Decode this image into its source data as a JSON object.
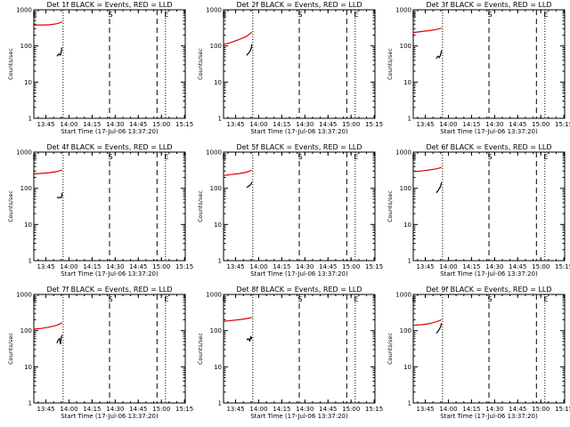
{
  "figure": {
    "background": "#ffffff",
    "axis_color": "#000000",
    "events_color": "#000000",
    "lld_color": "#e00000"
  },
  "chart_data": [
    {
      "type": "line",
      "title": "Det 1f BLACK = Events, RED = LLD",
      "xlabel": "Start Time (17-Jul-06 13:37:20)",
      "ylabel": "Counts/sec",
      "yscale": "log",
      "ylim": [
        1,
        1000
      ],
      "xlim_sec": [
        0,
        5900
      ],
      "y_ticks": [
        "1",
        "10",
        "100",
        "1000"
      ],
      "x_ticks": [
        {
          "t": 470,
          "label": "13:45"
        },
        {
          "t": 1370,
          "label": "14:00"
        },
        {
          "t": 2270,
          "label": "14:15"
        },
        {
          "t": 3170,
          "label": "14:30"
        },
        {
          "t": 4070,
          "label": "14:45"
        },
        {
          "t": 4970,
          "label": "15:00"
        },
        {
          "t": 5870,
          "label": "15:15"
        }
      ],
      "markers": [
        {
          "t": 0,
          "style": "dotted",
          "label": "E"
        },
        {
          "t": 1140,
          "style": "dotted",
          "label": ""
        },
        {
          "t": 2950,
          "style": "dashed",
          "label": "S"
        },
        {
          "t": 4800,
          "style": "dashed",
          "label": ""
        },
        {
          "t": 5130,
          "style": "dotted",
          "label": "E"
        }
      ],
      "series": [
        {
          "name": "LLD",
          "color": "#e00000",
          "x": [
            0,
            300,
            600,
            900,
            1100
          ],
          "y": [
            380,
            380,
            385,
            410,
            460
          ]
        },
        {
          "name": "Events",
          "color": "#000000",
          "x": [
            900,
            980,
            1040,
            1060,
            1080,
            1090
          ],
          "y": [
            52,
            60,
            56,
            65,
            78,
            90
          ]
        }
      ]
    },
    {
      "type": "line",
      "title": "Det 2f BLACK = Events, RED = LLD",
      "xlabel": "Start Time (17-Jul-06 13:37:20)",
      "ylabel": "Counts/sec",
      "yscale": "log",
      "ylim": [
        1,
        1000
      ],
      "xlim_sec": [
        0,
        5900
      ],
      "y_ticks": [
        "1",
        "10",
        "100",
        "1000"
      ],
      "x_ticks": [
        {
          "t": 470,
          "label": "13:45"
        },
        {
          "t": 1370,
          "label": "14:00"
        },
        {
          "t": 2270,
          "label": "14:15"
        },
        {
          "t": 3170,
          "label": "14:30"
        },
        {
          "t": 4070,
          "label": "14:45"
        },
        {
          "t": 4970,
          "label": "15:00"
        },
        {
          "t": 5870,
          "label": "15:15"
        }
      ],
      "markers": [
        {
          "t": 0,
          "style": "dotted",
          "label": "E"
        },
        {
          "t": 1140,
          "style": "dotted",
          "label": ""
        },
        {
          "t": 2950,
          "style": "dashed",
          "label": "S"
        },
        {
          "t": 4800,
          "style": "dashed",
          "label": ""
        },
        {
          "t": 5130,
          "style": "dotted",
          "label": "E"
        }
      ],
      "series": [
        {
          "name": "LLD",
          "color": "#e00000",
          "x": [
            0,
            300,
            600,
            900,
            1100
          ],
          "y": [
            110,
            125,
            150,
            185,
            240
          ]
        },
        {
          "name": "Events",
          "color": "#000000",
          "x": [
            900,
            960,
            1020,
            1060,
            1080,
            1100
          ],
          "y": [
            55,
            62,
            70,
            78,
            85,
            110
          ]
        }
      ]
    },
    {
      "type": "line",
      "title": "Det 3f BLACK = Events, RED = LLD",
      "xlabel": "Start Time (17-Jul-06 13:37:20)",
      "ylabel": "Counts/sec",
      "yscale": "log",
      "ylim": [
        1,
        1000
      ],
      "xlim_sec": [
        0,
        5900
      ],
      "y_ticks": [
        "1",
        "10",
        "100",
        "1000"
      ],
      "x_ticks": [
        {
          "t": 470,
          "label": "13:45"
        },
        {
          "t": 1370,
          "label": "14:00"
        },
        {
          "t": 2270,
          "label": "14:15"
        },
        {
          "t": 3170,
          "label": "14:30"
        },
        {
          "t": 4070,
          "label": "14:45"
        },
        {
          "t": 4970,
          "label": "15:00"
        },
        {
          "t": 5870,
          "label": "15:15"
        }
      ],
      "markers": [
        {
          "t": 0,
          "style": "dotted",
          "label": "E"
        },
        {
          "t": 1140,
          "style": "dotted",
          "label": ""
        },
        {
          "t": 2950,
          "style": "dashed",
          "label": "S"
        },
        {
          "t": 4800,
          "style": "dashed",
          "label": ""
        },
        {
          "t": 5130,
          "style": "dotted",
          "label": "E"
        }
      ],
      "series": [
        {
          "name": "LLD",
          "color": "#e00000",
          "x": [
            0,
            300,
            600,
            900,
            1100
          ],
          "y": [
            235,
            250,
            265,
            285,
            310
          ]
        },
        {
          "name": "Events",
          "color": "#000000",
          "x": [
            900,
            960,
            1020,
            1060,
            1080,
            1100
          ],
          "y": [
            45,
            52,
            48,
            55,
            62,
            75
          ]
        }
      ]
    },
    {
      "type": "line",
      "title": "Det 4f BLACK = Events, RED = LLD",
      "xlabel": "Start Time (17-Jul-06 13:37:20)",
      "ylabel": "Counts/sec",
      "yscale": "log",
      "ylim": [
        1,
        1000
      ],
      "xlim_sec": [
        0,
        5900
      ],
      "y_ticks": [
        "1",
        "10",
        "100",
        "1000"
      ],
      "x_ticks": [
        {
          "t": 470,
          "label": "13:45"
        },
        {
          "t": 1370,
          "label": "14:00"
        },
        {
          "t": 2270,
          "label": "14:15"
        },
        {
          "t": 3170,
          "label": "14:30"
        },
        {
          "t": 4070,
          "label": "14:45"
        },
        {
          "t": 4970,
          "label": "15:00"
        },
        {
          "t": 5870,
          "label": "15:15"
        }
      ],
      "markers": [
        {
          "t": 0,
          "style": "dotted",
          "label": "E"
        },
        {
          "t": 1140,
          "style": "dotted",
          "label": ""
        },
        {
          "t": 2950,
          "style": "dashed",
          "label": "S"
        },
        {
          "t": 4800,
          "style": "dashed",
          "label": ""
        },
        {
          "t": 5130,
          "style": "dotted",
          "label": "E"
        }
      ],
      "series": [
        {
          "name": "LLD",
          "color": "#e00000",
          "x": [
            0,
            300,
            600,
            900,
            1100
          ],
          "y": [
            250,
            258,
            270,
            290,
            320
          ]
        },
        {
          "name": "Events",
          "color": "#000000",
          "x": [
            900,
            980,
            1040,
            1070,
            1090,
            1100
          ],
          "y": [
            55,
            56,
            55,
            56,
            60,
            75
          ]
        }
      ]
    },
    {
      "type": "line",
      "title": "Det 5f BLACK = Events, RED = LLD",
      "xlabel": "Start Time (17-Jul-06 13:37:20)",
      "ylabel": "Counts/sec",
      "yscale": "log",
      "ylim": [
        1,
        1000
      ],
      "xlim_sec": [
        0,
        5900
      ],
      "y_ticks": [
        "1",
        "10",
        "100",
        "1000"
      ],
      "x_ticks": [
        {
          "t": 470,
          "label": "13:45"
        },
        {
          "t": 1370,
          "label": "14:00"
        },
        {
          "t": 2270,
          "label": "14:15"
        },
        {
          "t": 3170,
          "label": "14:30"
        },
        {
          "t": 4070,
          "label": "14:45"
        },
        {
          "t": 4970,
          "label": "15:00"
        },
        {
          "t": 5870,
          "label": "15:15"
        }
      ],
      "markers": [
        {
          "t": 0,
          "style": "dotted",
          "label": "E"
        },
        {
          "t": 1140,
          "style": "dotted",
          "label": ""
        },
        {
          "t": 2950,
          "style": "dashed",
          "label": "S"
        },
        {
          "t": 4800,
          "style": "dashed",
          "label": ""
        },
        {
          "t": 5130,
          "style": "dotted",
          "label": "E"
        }
      ],
      "series": [
        {
          "name": "LLD",
          "color": "#e00000",
          "x": [
            0,
            300,
            600,
            900,
            1100
          ],
          "y": [
            225,
            240,
            255,
            280,
            315
          ]
        },
        {
          "name": "Events",
          "color": "#000000",
          "x": [
            900,
            960,
            1020,
            1060,
            1080,
            1100
          ],
          "y": [
            105,
            112,
            120,
            128,
            135,
            150
          ]
        }
      ]
    },
    {
      "type": "line",
      "title": "Det 6f BLACK = Events, RED = LLD",
      "xlabel": "Start Time (17-Jul-06 13:37:20)",
      "ylabel": "Counts/sec",
      "yscale": "log",
      "ylim": [
        1,
        1000
      ],
      "xlim_sec": [
        0,
        5900
      ],
      "y_ticks": [
        "1",
        "10",
        "100",
        "1000"
      ],
      "x_ticks": [
        {
          "t": 470,
          "label": "13:45"
        },
        {
          "t": 1370,
          "label": "14:00"
        },
        {
          "t": 2270,
          "label": "14:15"
        },
        {
          "t": 3170,
          "label": "14:30"
        },
        {
          "t": 4070,
          "label": "14:45"
        },
        {
          "t": 4970,
          "label": "15:00"
        },
        {
          "t": 5870,
          "label": "15:15"
        }
      ],
      "markers": [
        {
          "t": 0,
          "style": "dotted",
          "label": "E"
        },
        {
          "t": 1140,
          "style": "dotted",
          "label": ""
        },
        {
          "t": 2950,
          "style": "dashed",
          "label": "S"
        },
        {
          "t": 4800,
          "style": "dashed",
          "label": ""
        },
        {
          "t": 5130,
          "style": "dotted",
          "label": "E"
        }
      ],
      "series": [
        {
          "name": "LLD",
          "color": "#e00000",
          "x": [
            0,
            300,
            600,
            900,
            1100
          ],
          "y": [
            290,
            300,
            320,
            345,
            375
          ]
        },
        {
          "name": "Events",
          "color": "#000000",
          "x": [
            900,
            960,
            1020,
            1060,
            1080,
            1100
          ],
          "y": [
            75,
            85,
            100,
            110,
            125,
            145
          ]
        }
      ]
    },
    {
      "type": "line",
      "title": "Det 7f BLACK = Events, RED = LLD",
      "xlabel": "Start Time (17-Jul-06 13:37:20)",
      "ylabel": "Counts/sec",
      "yscale": "log",
      "ylim": [
        1,
        1000
      ],
      "xlim_sec": [
        0,
        5900
      ],
      "y_ticks": [
        "1",
        "10",
        "100",
        "1000"
      ],
      "x_ticks": [
        {
          "t": 470,
          "label": "13:45"
        },
        {
          "t": 1370,
          "label": "14:00"
        },
        {
          "t": 2270,
          "label": "14:15"
        },
        {
          "t": 3170,
          "label": "14:30"
        },
        {
          "t": 4070,
          "label": "14:45"
        },
        {
          "t": 4970,
          "label": "15:00"
        },
        {
          "t": 5870,
          "label": "15:15"
        }
      ],
      "markers": [
        {
          "t": 0,
          "style": "dotted",
          "label": "E"
        },
        {
          "t": 1140,
          "style": "dotted",
          "label": ""
        },
        {
          "t": 2950,
          "style": "dashed",
          "label": "S"
        },
        {
          "t": 4800,
          "style": "dashed",
          "label": ""
        },
        {
          "t": 5130,
          "style": "dotted",
          "label": "E"
        }
      ],
      "series": [
        {
          "name": "LLD",
          "color": "#e00000",
          "x": [
            0,
            300,
            600,
            900,
            1100
          ],
          "y": [
            110,
            115,
            125,
            140,
            165
          ]
        },
        {
          "name": "Events",
          "color": "#000000",
          "x": [
            900,
            950,
            1000,
            1040,
            1070,
            1100
          ],
          "y": [
            45,
            55,
            60,
            42,
            65,
            75
          ]
        }
      ]
    },
    {
      "type": "line",
      "title": "Det 8f BLACK = Events, RED = LLD",
      "xlabel": "Start Time (17-Jul-06 13:37:20)",
      "ylabel": "Counts/sec",
      "yscale": "log",
      "ylim": [
        1,
        1000
      ],
      "xlim_sec": [
        0,
        5900
      ],
      "y_ticks": [
        "1",
        "10",
        "100",
        "1000"
      ],
      "x_ticks": [
        {
          "t": 470,
          "label": "13:45"
        },
        {
          "t": 1370,
          "label": "14:00"
        },
        {
          "t": 2270,
          "label": "14:15"
        },
        {
          "t": 3170,
          "label": "14:30"
        },
        {
          "t": 4070,
          "label": "14:45"
        },
        {
          "t": 4970,
          "label": "15:00"
        },
        {
          "t": 5870,
          "label": "15:15"
        }
      ],
      "markers": [
        {
          "t": 0,
          "style": "dotted",
          "label": "E"
        },
        {
          "t": 1140,
          "style": "dotted",
          "label": ""
        },
        {
          "t": 2950,
          "style": "dashed",
          "label": "S"
        },
        {
          "t": 4800,
          "style": "dashed",
          "label": ""
        },
        {
          "t": 5130,
          "style": "dotted",
          "label": "E"
        }
      ],
      "series": [
        {
          "name": "LLD",
          "color": "#e00000",
          "x": [
            0,
            300,
            600,
            900,
            1100
          ],
          "y": [
            180,
            190,
            200,
            215,
            230
          ]
        },
        {
          "name": "Events",
          "color": "#000000",
          "x": [
            900,
            960,
            1020,
            1060,
            1080,
            1100
          ],
          "y": [
            55,
            60,
            52,
            65,
            58,
            68
          ]
        }
      ]
    },
    {
      "type": "line",
      "title": "Det 9f BLACK = Events, RED = LLD",
      "xlabel": "Start Time (17-Jul-06 13:37:20)",
      "ylabel": "Counts/sec",
      "yscale": "log",
      "ylim": [
        1,
        1000
      ],
      "xlim_sec": [
        0,
        5900
      ],
      "y_ticks": [
        "1",
        "10",
        "100",
        "1000"
      ],
      "x_ticks": [
        {
          "t": 470,
          "label": "13:45"
        },
        {
          "t": 1370,
          "label": "14:00"
        },
        {
          "t": 2270,
          "label": "14:15"
        },
        {
          "t": 3170,
          "label": "14:30"
        },
        {
          "t": 4070,
          "label": "14:45"
        },
        {
          "t": 4970,
          "label": "15:00"
        },
        {
          "t": 5870,
          "label": "15:15"
        }
      ],
      "markers": [
        {
          "t": 0,
          "style": "dotted",
          "label": "E"
        },
        {
          "t": 1140,
          "style": "dotted",
          "label": ""
        },
        {
          "t": 2950,
          "style": "dashed",
          "label": "S"
        },
        {
          "t": 4800,
          "style": "dashed",
          "label": ""
        },
        {
          "t": 5130,
          "style": "dotted",
          "label": "E"
        }
      ],
      "series": [
        {
          "name": "LLD",
          "color": "#e00000",
          "x": [
            0,
            300,
            600,
            900,
            1100
          ],
          "y": [
            140,
            145,
            155,
            175,
            200
          ]
        },
        {
          "name": "Events",
          "color": "#000000",
          "x": [
            900,
            960,
            1020,
            1060,
            1080,
            1100
          ],
          "y": [
            85,
            95,
            110,
            125,
            140,
            160
          ]
        }
      ]
    }
  ]
}
